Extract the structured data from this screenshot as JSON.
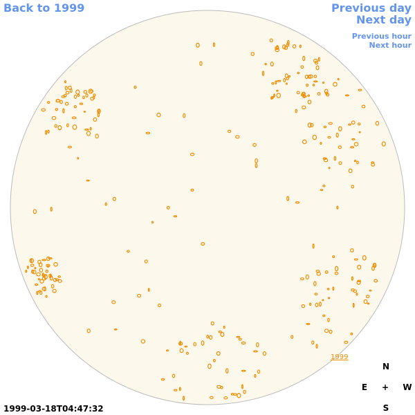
{
  "navigation": {
    "back": "Back to 1999",
    "previous_day": "Previous day",
    "next_day": "Next day",
    "previous_hour": "Previous hour",
    "next_hour": "Next hour"
  },
  "map": {
    "year_link": "1999",
    "timestamp": "1999-03-18T04:47:32"
  },
  "compass": {
    "north": "N",
    "east": "E",
    "center": "+",
    "west": "W",
    "south": "S"
  }
}
